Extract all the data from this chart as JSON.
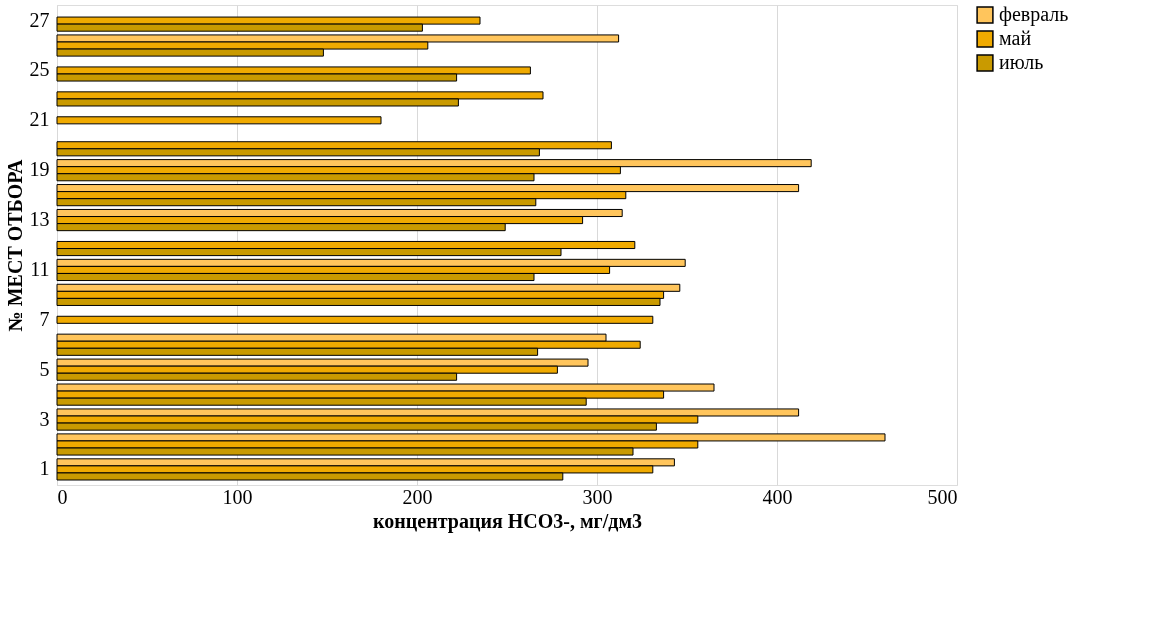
{
  "chart_data": {
    "type": "bar",
    "orientation": "horizontal",
    "xlabel": "концентрация HCO3-, мг/дм3",
    "ylabel": "№ МЕСТ ОТБОРА",
    "categories": [
      "27",
      null,
      "25",
      null,
      "21",
      null,
      "19",
      null,
      "13",
      null,
      "11",
      null,
      "7",
      null,
      "5",
      null,
      "3",
      null,
      "1"
    ],
    "series": [
      {
        "name": "февраль",
        "color": "#ffc55c",
        "values": [
          null,
          312,
          null,
          null,
          null,
          null,
          419,
          412,
          314,
          null,
          349,
          346,
          null,
          305,
          295,
          365,
          412,
          460,
          343
        ]
      },
      {
        "name": "май",
        "color": "#f0aa00",
        "values": [
          235,
          206,
          263,
          270,
          180,
          308,
          313,
          316,
          292,
          321,
          307,
          337,
          331,
          324,
          278,
          337,
          356,
          356,
          331
        ]
      },
      {
        "name": "июль",
        "color": "#c99a00",
        "values": [
          203,
          148,
          222,
          223,
          null,
          268,
          265,
          266,
          249,
          280,
          265,
          335,
          null,
          267,
          222,
          294,
          333,
          320,
          281
        ]
      }
    ],
    "xlim": [
      0,
      500
    ],
    "xticks": [
      0,
      100,
      200,
      300,
      400,
      500
    ],
    "grid": "x",
    "legend": "right"
  }
}
